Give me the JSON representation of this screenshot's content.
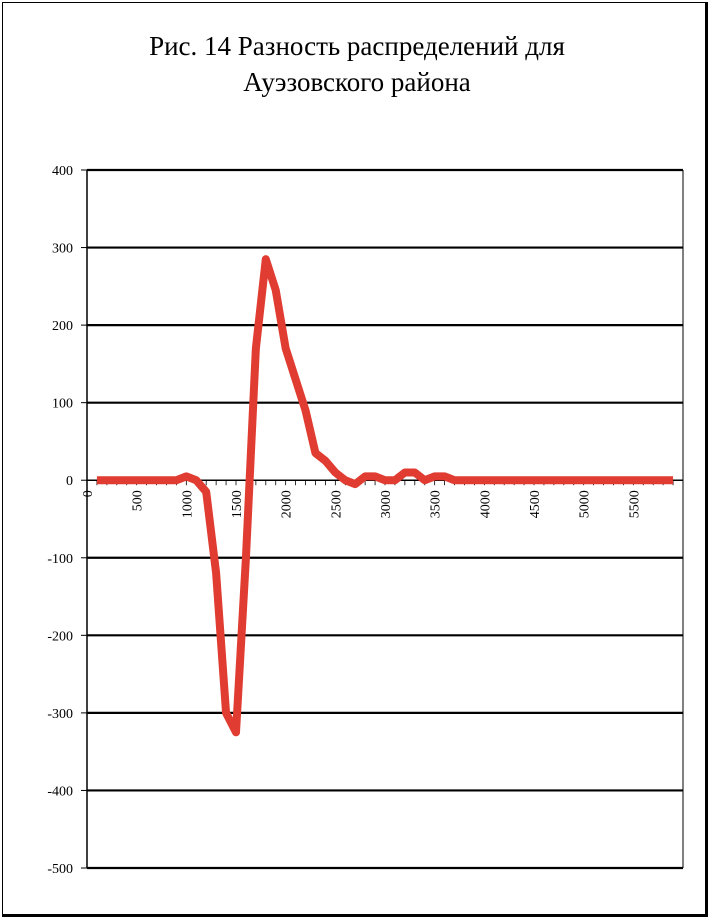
{
  "chart_data": {
    "type": "line",
    "title_line1": "Рис. 14 Разность распределений для",
    "title_line2": "Ауэзовского района",
    "xlabel": "",
    "ylabel": "",
    "ylim": [
      -500,
      400
    ],
    "yticks": [
      400,
      300,
      200,
      100,
      0,
      -100,
      -200,
      -300,
      -400,
      -500
    ],
    "xlim": [
      0,
      6000
    ],
    "xticks": [
      500,
      1000,
      1500,
      2000,
      2500,
      3000,
      3500,
      4000,
      4500,
      5000,
      5500
    ],
    "grid": true,
    "legend": "none",
    "series": [
      {
        "color": "#e03c31",
        "x": [
          100,
          200,
          300,
          400,
          500,
          600,
          700,
          800,
          900,
          1000,
          1100,
          1200,
          1300,
          1400,
          1500,
          1600,
          1700,
          1800,
          1900,
          2000,
          2100,
          2200,
          2300,
          2400,
          2500,
          2600,
          2700,
          2800,
          2900,
          3000,
          3100,
          3200,
          3300,
          3400,
          3500,
          3600,
          3700,
          3800,
          3900,
          4000,
          4100,
          4200,
          4300,
          4400,
          4500,
          4600,
          4700,
          4800,
          4900,
          5000,
          5100,
          5200,
          5300,
          5400,
          5500,
          5600,
          5700,
          5800,
          5900
        ],
        "y": [
          0,
          0,
          0,
          0,
          0,
          0,
          0,
          0,
          0,
          5,
          0,
          -15,
          -120,
          -300,
          -325,
          -100,
          170,
          285,
          245,
          170,
          130,
          90,
          35,
          25,
          10,
          0,
          -5,
          5,
          5,
          0,
          0,
          10,
          10,
          0,
          5,
          5,
          0,
          0,
          0,
          0,
          0,
          0,
          0,
          0,
          0,
          0,
          0,
          0,
          0,
          0,
          0,
          0,
          0,
          0,
          0,
          0,
          0,
          0,
          0
        ]
      }
    ]
  }
}
